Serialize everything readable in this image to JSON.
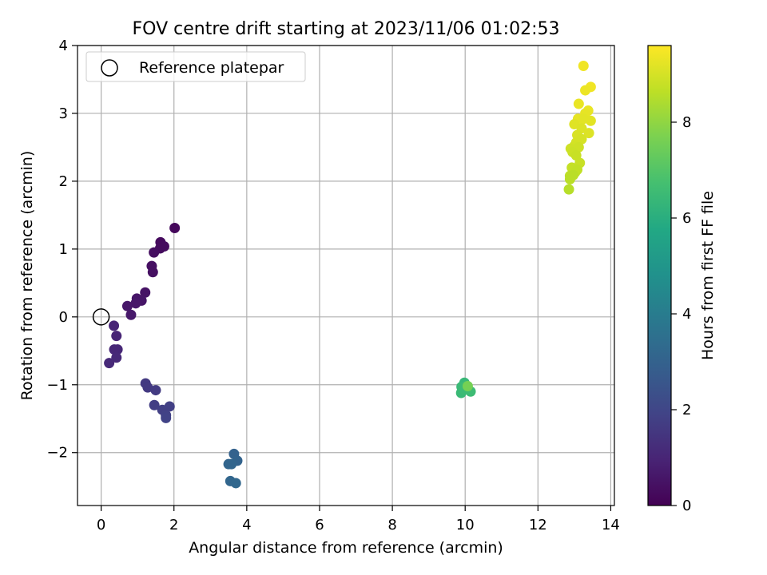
{
  "chart_data": {
    "type": "scatter",
    "title": "FOV centre drift starting at 2023/11/06 01:02:53",
    "xlabel": "Angular distance from reference (arcmin)",
    "ylabel": "Rotation from reference (arcmin)",
    "xlim": [
      -0.65,
      14.1
    ],
    "ylim": [
      -2.78,
      4.0
    ],
    "xticks": [
      0,
      2,
      4,
      6,
      8,
      10,
      12,
      14
    ],
    "yticks": [
      -2,
      -1,
      0,
      1,
      2,
      3,
      4
    ],
    "grid": true,
    "legend": {
      "placement": "upper-left",
      "entries": [
        {
          "label": "Reference platepar",
          "marker": "open-circle"
        }
      ]
    },
    "reference_point": {
      "x": 0,
      "y": 0
    },
    "colorbar": {
      "label": "Hours from first FF file",
      "range": [
        0,
        9.6
      ],
      "ticks": [
        0,
        2,
        4,
        6,
        8
      ],
      "colormap": "viridis"
    },
    "points": [
      {
        "x": 2.02,
        "y": 1.31,
        "t": 0.2
      },
      {
        "x": 1.63,
        "y": 1.1,
        "t": 0.25
      },
      {
        "x": 1.73,
        "y": 1.04,
        "t": 0.3
      },
      {
        "x": 1.62,
        "y": 1.01,
        "t": 0.3
      },
      {
        "x": 1.45,
        "y": 0.95,
        "t": 0.35
      },
      {
        "x": 1.39,
        "y": 0.75,
        "t": 0.4
      },
      {
        "x": 1.42,
        "y": 0.66,
        "t": 0.4
      },
      {
        "x": 1.21,
        "y": 0.36,
        "t": 0.5
      },
      {
        "x": 0.98,
        "y": 0.27,
        "t": 0.55
      },
      {
        "x": 1.11,
        "y": 0.24,
        "t": 0.55
      },
      {
        "x": 0.95,
        "y": 0.2,
        "t": 0.6
      },
      {
        "x": 0.72,
        "y": 0.16,
        "t": 0.6
      },
      {
        "x": 0.82,
        "y": 0.03,
        "t": 0.65
      },
      {
        "x": 0.35,
        "y": -0.13,
        "t": 1.0
      },
      {
        "x": 0.42,
        "y": -0.28,
        "t": 1.0
      },
      {
        "x": 0.45,
        "y": -0.48,
        "t": 1.05
      },
      {
        "x": 0.36,
        "y": -0.48,
        "t": 1.05
      },
      {
        "x": 0.42,
        "y": -0.6,
        "t": 1.1
      },
      {
        "x": 0.22,
        "y": -0.68,
        "t": 1.1
      },
      {
        "x": 1.22,
        "y": -0.98,
        "t": 1.6
      },
      {
        "x": 1.28,
        "y": -1.04,
        "t": 1.6
      },
      {
        "x": 1.5,
        "y": -1.08,
        "t": 1.65
      },
      {
        "x": 1.46,
        "y": -1.3,
        "t": 1.75
      },
      {
        "x": 1.68,
        "y": -1.37,
        "t": 1.8
      },
      {
        "x": 1.88,
        "y": -1.32,
        "t": 1.8
      },
      {
        "x": 1.78,
        "y": -1.45,
        "t": 1.85
      },
      {
        "x": 1.78,
        "y": -1.49,
        "t": 1.9
      },
      {
        "x": 3.65,
        "y": -2.02,
        "t": 3.0
      },
      {
        "x": 3.74,
        "y": -2.12,
        "t": 3.05
      },
      {
        "x": 3.5,
        "y": -2.17,
        "t": 3.1
      },
      {
        "x": 3.58,
        "y": -2.17,
        "t": 3.1
      },
      {
        "x": 3.55,
        "y": -2.42,
        "t": 3.15
      },
      {
        "x": 3.7,
        "y": -2.45,
        "t": 3.2
      },
      {
        "x": 9.98,
        "y": -0.97,
        "t": 6.4
      },
      {
        "x": 9.9,
        "y": -1.03,
        "t": 6.45
      },
      {
        "x": 9.89,
        "y": -1.12,
        "t": 6.45
      },
      {
        "x": 9.97,
        "y": -1.07,
        "t": 6.5
      },
      {
        "x": 10.0,
        "y": -1.02,
        "t": 6.5
      },
      {
        "x": 10.15,
        "y": -1.1,
        "t": 6.55
      },
      {
        "x": 10.07,
        "y": -1.02,
        "t": 7.6
      },
      {
        "x": 13.25,
        "y": 3.7,
        "t": 9.4
      },
      {
        "x": 13.45,
        "y": 3.39,
        "t": 9.4
      },
      {
        "x": 13.3,
        "y": 3.34,
        "t": 9.35
      },
      {
        "x": 13.12,
        "y": 3.14,
        "t": 9.3
      },
      {
        "x": 13.38,
        "y": 3.04,
        "t": 9.3
      },
      {
        "x": 13.3,
        "y": 3.0,
        "t": 9.25
      },
      {
        "x": 13.1,
        "y": 2.92,
        "t": 9.25
      },
      {
        "x": 13.25,
        "y": 2.92,
        "t": 9.2
      },
      {
        "x": 13.45,
        "y": 2.89,
        "t": 9.2
      },
      {
        "x": 13.0,
        "y": 2.84,
        "t": 9.15
      },
      {
        "x": 13.2,
        "y": 2.78,
        "t": 9.1
      },
      {
        "x": 13.4,
        "y": 2.71,
        "t": 9.1
      },
      {
        "x": 13.08,
        "y": 2.68,
        "t": 9.05
      },
      {
        "x": 13.2,
        "y": 2.62,
        "t": 9.0
      },
      {
        "x": 13.05,
        "y": 2.57,
        "t": 9.0
      },
      {
        "x": 13.0,
        "y": 2.52,
        "t": 8.95
      },
      {
        "x": 13.12,
        "y": 2.5,
        "t": 8.9
      },
      {
        "x": 12.9,
        "y": 2.48,
        "t": 8.9
      },
      {
        "x": 12.95,
        "y": 2.43,
        "t": 8.85
      },
      {
        "x": 13.05,
        "y": 2.38,
        "t": 8.8
      },
      {
        "x": 13.15,
        "y": 2.27,
        "t": 8.8
      },
      {
        "x": 12.93,
        "y": 2.2,
        "t": 8.75
      },
      {
        "x": 13.08,
        "y": 2.17,
        "t": 8.7
      },
      {
        "x": 13.02,
        "y": 2.13,
        "t": 8.7
      },
      {
        "x": 12.88,
        "y": 2.08,
        "t": 8.65
      },
      {
        "x": 12.97,
        "y": 2.09,
        "t": 8.6
      },
      {
        "x": 12.88,
        "y": 2.03,
        "t": 8.6
      },
      {
        "x": 12.85,
        "y": 1.88,
        "t": 8.55
      }
    ]
  }
}
